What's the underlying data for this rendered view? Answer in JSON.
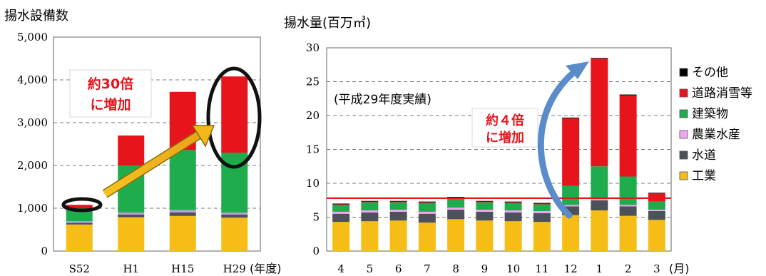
{
  "chart_data": [
    {
      "type": "bar",
      "stacked": true,
      "ylabel": "揚水設備数",
      "xlabel": "(年度)",
      "categories": [
        "S52",
        "H1",
        "H15",
        "H29"
      ],
      "yticks": [
        "0",
        "1,000",
        "2,000",
        "3,000",
        "4,000",
        "5,000"
      ],
      "ylim": [
        0,
        5000
      ],
      "grid": "dashed",
      "series": [
        {
          "values": [
            620,
            790,
            820,
            780
          ]
        },
        {
          "values": [
            40,
            60,
            80,
            70
          ]
        },
        {
          "values": [
            40,
            50,
            60,
            50
          ]
        },
        {
          "values": [
            300,
            1100,
            1400,
            1400
          ]
        },
        {
          "values": [
            80,
            700,
            1360,
            1780
          ]
        }
      ],
      "annotations": [
        {
          "text_lines": [
            "約30倍",
            "に増加"
          ]
        }
      ]
    },
    {
      "type": "bar",
      "stacked": true,
      "ylabel": "揚水量(百万㎥)",
      "xlabel": "(月)",
      "subtitle": "(平成29年度実績)",
      "categories": [
        "4",
        "5",
        "6",
        "7",
        "8",
        "9",
        "10",
        "11",
        "12",
        "1",
        "2",
        "3"
      ],
      "yticks": [
        "0",
        "5",
        "10",
        "15",
        "20",
        "25",
        "30"
      ],
      "ylim": [
        0,
        30
      ],
      "grid": "dashed",
      "reference_line": {
        "value": 7.8,
        "color": "#e8141c"
      },
      "legend_position": "right",
      "series": [
        {
          "name": "工業",
          "values": [
            4.3,
            4.4,
            4.5,
            4.2,
            4.7,
            4.5,
            4.4,
            4.3,
            5.3,
            6.0,
            5.2,
            4.6
          ]
        },
        {
          "name": "水道",
          "values": [
            1.2,
            1.3,
            1.3,
            1.3,
            1.4,
            1.3,
            1.3,
            1.3,
            1.3,
            1.5,
            1.4,
            1.3
          ]
        },
        {
          "name": "農業水産",
          "values": [
            0.3,
            0.3,
            0.3,
            0.3,
            0.3,
            0.3,
            0.3,
            0.3,
            0.2,
            0.2,
            0.2,
            0.2
          ]
        },
        {
          "name": "建築物",
          "values": [
            1.0,
            1.2,
            1.1,
            1.3,
            1.4,
            1.1,
            1.1,
            1.0,
            2.8,
            4.8,
            4.2,
            1.2
          ]
        },
        {
          "name": "道路消雪等",
          "values": [
            0.1,
            0.1,
            0.1,
            0.1,
            0.1,
            0.1,
            0.1,
            0.1,
            10.0,
            15.9,
            12.0,
            1.2
          ]
        },
        {
          "name": "その他",
          "values": [
            0.1,
            0.1,
            0.1,
            0.1,
            0.1,
            0.1,
            0.1,
            0.1,
            0.1,
            0.1,
            0.1,
            0.1
          ]
        }
      ],
      "annotations": [
        {
          "text_lines": [
            "約４倍",
            "に増加"
          ]
        }
      ]
    }
  ],
  "colors": {
    "工業": "#f5bd16",
    "水道": "#4d5159",
    "農業水産": "#f1a4f1",
    "建築物": "#1eac4c",
    "道路消雪等": "#e8141c",
    "その他": "#000000",
    "left_other": "#b99fd4"
  }
}
